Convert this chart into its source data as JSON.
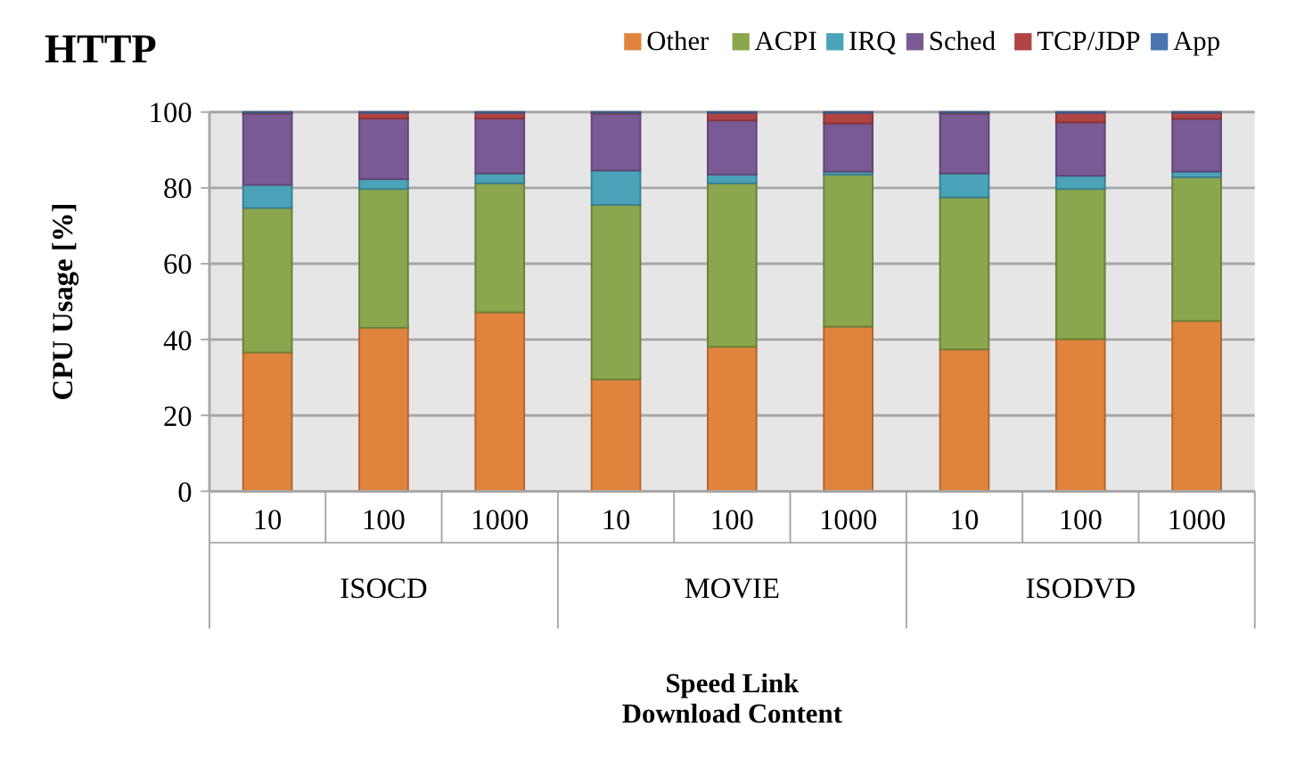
{
  "chart_data": {
    "type": "bar",
    "stacked": true,
    "title": "HTTP",
    "xlabel": "Speed Link\nDownload Content",
    "ylabel": "CPU Usage [%]",
    "categories": [
      "10",
      "100",
      "1000",
      "10",
      "100",
      "1000",
      "10",
      "100",
      "1000"
    ],
    "annotations": [
      "ISOCD",
      "MOVIE",
      "ISODVD"
    ],
    "ylim": [
      0,
      100
    ],
    "yticks": [
      0,
      20,
      40,
      60,
      80,
      100
    ],
    "grid": "y",
    "legend": "top right",
    "series": [
      {
        "name": "Other",
        "color": "#e0843d",
        "values": [
          36.6,
          43.1,
          47.2,
          29.5,
          38.1,
          43.4,
          37.4,
          40.1,
          44.9
        ]
      },
      {
        "name": "ACPI",
        "color": "#8ba64c",
        "values": [
          38.1,
          36.6,
          34.0,
          46.0,
          43.1,
          40.1,
          40.1,
          39.6,
          37.9
        ]
      },
      {
        "name": "IRQ",
        "color": "#4aa3b8",
        "values": [
          6.1,
          2.6,
          2.6,
          9.1,
          2.3,
          0.8,
          6.3,
          3.5,
          1.5
        ]
      },
      {
        "name": "Sched",
        "color": "#7a5a94",
        "values": [
          18.8,
          16.0,
          14.5,
          15.0,
          14.3,
          12.7,
          15.8,
          14.1,
          13.9
        ]
      },
      {
        "name": "TCP/JDP",
        "color": "#b04444",
        "values": [
          0.2,
          1.5,
          1.5,
          0.2,
          2.0,
          2.8,
          0.2,
          2.5,
          1.6
        ]
      },
      {
        "name": "App",
        "color": "#4a74b0",
        "values": [
          0.2,
          0.2,
          0.2,
          0.2,
          0.2,
          0.2,
          0.2,
          0.2,
          0.2
        ]
      }
    ]
  }
}
